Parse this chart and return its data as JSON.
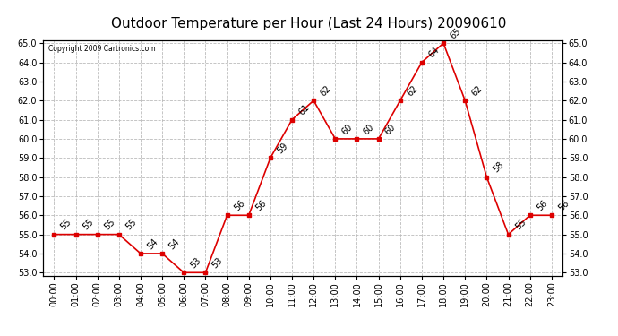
{
  "title": "Outdoor Temperature per Hour (Last 24 Hours) 20090610",
  "copyright_text": "Copyright 2009 Cartronics.com",
  "hours": [
    "00:00",
    "01:00",
    "02:00",
    "03:00",
    "04:00",
    "05:00",
    "06:00",
    "07:00",
    "08:00",
    "09:00",
    "10:00",
    "11:00",
    "12:00",
    "13:00",
    "14:00",
    "15:00",
    "16:00",
    "17:00",
    "18:00",
    "19:00",
    "20:00",
    "21:00",
    "22:00",
    "23:00"
  ],
  "temperatures": [
    55,
    55,
    55,
    55,
    54,
    54,
    53,
    53,
    56,
    56,
    59,
    61,
    62,
    60,
    60,
    60,
    62,
    64,
    65,
    62,
    58,
    55,
    56,
    56
  ],
  "line_color": "#dd0000",
  "marker_color": "#dd0000",
  "grid_color": "#bbbbbb",
  "bg_color": "#ffffff",
  "plot_bg_color": "#ffffff",
  "ylim_min": 53.0,
  "ylim_max": 65.0,
  "title_fontsize": 11,
  "label_fontsize": 7,
  "annotation_fontsize": 7,
  "yticks": [
    53.0,
    54.0,
    55.0,
    56.0,
    57.0,
    58.0,
    59.0,
    60.0,
    61.0,
    62.0,
    63.0,
    64.0,
    65.0
  ]
}
